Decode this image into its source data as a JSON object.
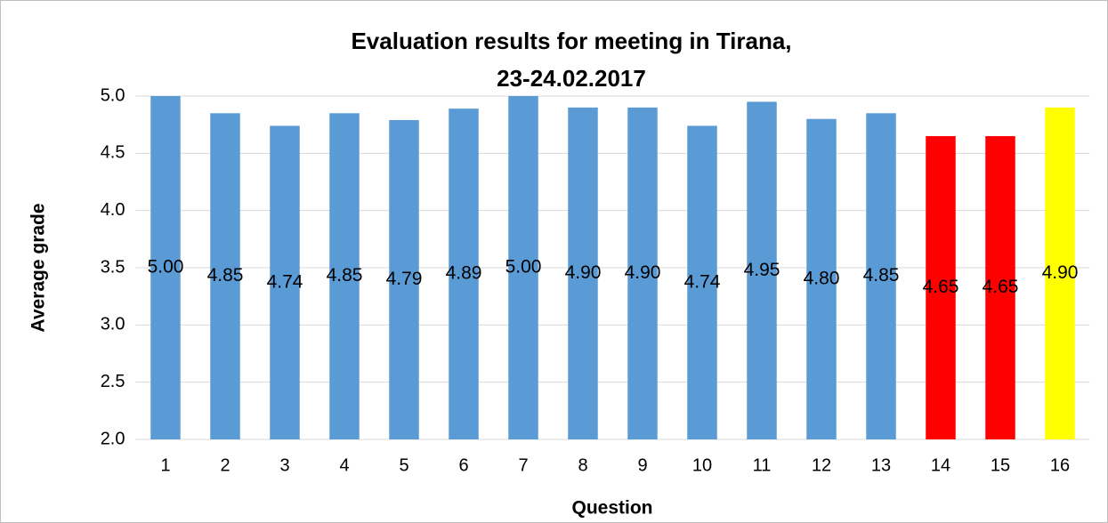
{
  "chart_data": {
    "type": "bar",
    "title": [
      "Evaluation results for meeting in Tirana,",
      "23-24.02.2017"
    ],
    "x_label": "Question",
    "y_label": "Average grade",
    "categories": [
      "1",
      "2",
      "3",
      "4",
      "5",
      "6",
      "7",
      "8",
      "9",
      "10",
      "11",
      "12",
      "13",
      "14",
      "15",
      "16"
    ],
    "values": [
      5,
      4.85,
      4.74,
      4.85,
      4.79,
      4.89,
      5,
      4.9,
      4.9,
      4.74,
      4.95,
      4.8,
      4.85,
      4.65,
      4.65,
      4.9
    ],
    "value_labels": [
      "5.00",
      "4.85",
      "4.74",
      "4.85",
      "4.79",
      "4.89",
      "5.00",
      "4.90",
      "4.90",
      "4.74",
      "4.95",
      "4.80",
      "4.85",
      "4.65",
      "4.65",
      "4.90"
    ],
    "colors": [
      "#5b9bd5",
      "#5b9bd5",
      "#5b9bd5",
      "#5b9bd5",
      "#5b9bd5",
      "#5b9bd5",
      "#5b9bd5",
      "#5b9bd5",
      "#5b9bd5",
      "#5b9bd5",
      "#5b9bd5",
      "#5b9bd5",
      "#5b9bd5",
      "#ff0000",
      "#ff0000",
      "#ffff00"
    ],
    "ylim": [
      2,
      5
    ],
    "yticks": [
      {
        "value": 2,
        "label": "2.0"
      },
      {
        "value": 2.5,
        "label": "2.5"
      },
      {
        "value": 3,
        "label": "3.0"
      },
      {
        "value": 3.5,
        "label": "3.5"
      },
      {
        "value": 4,
        "label": "4.0"
      },
      {
        "value": 4.5,
        "label": "4.5"
      },
      {
        "value": 5,
        "label": "5.0"
      }
    ],
    "grid": true
  }
}
